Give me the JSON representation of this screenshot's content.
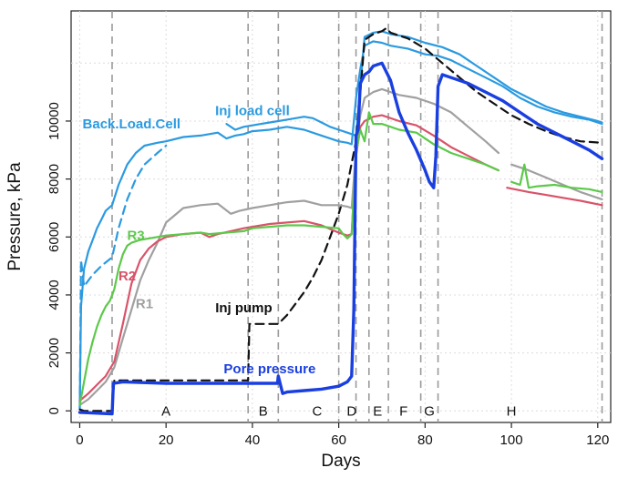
{
  "chart_data": {
    "type": "line",
    "xlabel": "Days",
    "ylabel": "Pressure, kPa",
    "xlim": [
      -2,
      123
    ],
    "ylim": [
      -400,
      13800
    ],
    "xticks": [
      0,
      20,
      40,
      60,
      80,
      100,
      120
    ],
    "yticks": [
      0,
      2000,
      4000,
      6000,
      8000,
      10000
    ],
    "grid": true,
    "phase_boundaries": [
      7.5,
      39,
      46,
      60,
      64,
      67,
      71.5,
      79,
      83,
      121
    ],
    "phases": [
      {
        "label": "A",
        "x": 20
      },
      {
        "label": "B",
        "x": 42.5
      },
      {
        "label": "C",
        "x": 55
      },
      {
        "label": "D",
        "x": 63
      },
      {
        "label": "E",
        "x": 69
      },
      {
        "label": "F",
        "x": 75
      },
      {
        "label": "G",
        "x": 81
      },
      {
        "label": "H",
        "x": 100
      }
    ],
    "annotations": [
      {
        "text": "Back.Load.Cell",
        "x": 12,
        "y": 9750,
        "color": "#2b9ae0"
      },
      {
        "text": "Inj load cell",
        "x": 40,
        "y": 10200,
        "color": "#2b9ae0"
      },
      {
        "text": "R3",
        "x": 13,
        "y": 5900,
        "color": "#5cc94a"
      },
      {
        "text": "R2",
        "x": 11,
        "y": 4500,
        "color": "#d9536a"
      },
      {
        "text": "R1",
        "x": 15,
        "y": 3550,
        "color": "#a0a0a0"
      },
      {
        "text": "Inj pump",
        "x": 38,
        "y": 3400,
        "color": "#111111"
      },
      {
        "text": "Pore pressure",
        "x": 44,
        "y": 1300,
        "color": "#1a3fe0"
      }
    ],
    "series": [
      {
        "color": "#2b9ae0",
        "dash": "solid",
        "width": 2.2,
        "x": [
          0,
          0.3,
          1,
          2,
          3,
          4,
          5,
          6,
          7.5,
          9,
          11,
          13,
          15,
          18,
          20,
          24,
          28,
          32,
          34,
          36,
          38,
          40,
          44,
          48,
          52,
          56,
          60,
          62,
          63,
          64,
          65,
          66,
          68,
          70,
          72,
          74,
          76,
          78,
          80,
          83,
          86,
          90,
          94,
          98,
          102,
          106,
          110,
          114,
          118,
          121
        ],
        "y": [
          100,
          3600,
          4900,
          5500,
          5900,
          6300,
          6600,
          6900,
          7100,
          7800,
          8500,
          8900,
          9150,
          9250,
          9300,
          9450,
          9500,
          9600,
          9400,
          9500,
          9550,
          9650,
          9700,
          9800,
          9700,
          9500,
          9300,
          9250,
          9200,
          10800,
          11800,
          12600,
          12750,
          12700,
          12600,
          12550,
          12500,
          12400,
          12300,
          12250,
          12100,
          11800,
          11500,
          11200,
          10800,
          10500,
          10300,
          10150,
          10050,
          9900
        ]
      },
      {
        "color": "#2b9ae0",
        "dash": "dashed",
        "width": 2.2,
        "x": [
          0,
          0.3,
          1,
          3,
          5,
          7.5,
          9,
          11,
          13,
          15,
          18,
          20
        ],
        "y": [
          100,
          5200,
          4300,
          4700,
          5000,
          5300,
          6300,
          7300,
          8000,
          8500,
          8900,
          9150
        ]
      },
      {
        "color": "#2b9ae0",
        "dash": "solid",
        "width": 2.2,
        "x": [
          34,
          36,
          38,
          40,
          42,
          44,
          46,
          48,
          50,
          52,
          54,
          56,
          58,
          60,
          62,
          63,
          64,
          65,
          66,
          68,
          70,
          72,
          76,
          80,
          84,
          88,
          92,
          96,
          100,
          104,
          108,
          112,
          116,
          120,
          121
        ],
        "y": [
          9900,
          9700,
          9800,
          9850,
          9900,
          9950,
          10000,
          10050,
          10100,
          10150,
          10100,
          9950,
          9800,
          9700,
          9600,
          9550,
          9500,
          11200,
          12900,
          13050,
          13100,
          13000,
          12900,
          12700,
          12550,
          12300,
          11900,
          11500,
          11100,
          10800,
          10500,
          10300,
          10150,
          10000,
          9950
        ]
      },
      {
        "color": "#111111",
        "dash": "dashed",
        "width": 2.2,
        "x": [
          0,
          1,
          7.5,
          8,
          39,
          39.3,
          46,
          48,
          50,
          52,
          54,
          56,
          58,
          60,
          62,
          64,
          65,
          66,
          68,
          70,
          71,
          72,
          76,
          80,
          84,
          88,
          92,
          96,
          100,
          104,
          108,
          112,
          116,
          121
        ],
        "y": [
          50,
          0,
          0,
          1050,
          1050,
          3000,
          3000,
          3300,
          3700,
          4100,
          4600,
          5200,
          6000,
          6800,
          7800,
          9300,
          11000,
          12800,
          13000,
          13100,
          13200,
          13050,
          12850,
          12500,
          12000,
          11500,
          11000,
          10600,
          10200,
          9900,
          9650,
          9450,
          9300,
          9250
        ]
      },
      {
        "color": "#a0a0a0",
        "dash": "solid",
        "width": 2.2,
        "x": [
          0,
          2,
          4,
          6,
          8,
          10,
          12,
          14,
          16,
          18,
          20,
          24,
          28,
          32,
          35,
          37,
          40,
          44,
          48,
          52,
          56,
          60,
          62,
          63,
          64,
          65,
          66,
          68,
          70,
          74,
          78,
          82,
          86,
          90,
          94,
          97
        ],
        "y": [
          200,
          400,
          700,
          1000,
          1500,
          2500,
          3500,
          4500,
          5200,
          5800,
          6500,
          7000,
          7100,
          7150,
          6800,
          6900,
          7000,
          7100,
          7200,
          7250,
          7100,
          7100,
          7050,
          7000,
          9000,
          10200,
          10800,
          11000,
          11100,
          10900,
          10800,
          10600,
          10300,
          9800,
          9300,
          8900
        ]
      },
      {
        "color": "#a0a0a0",
        "dash": "solid",
        "width": 2.2,
        "x": [
          100,
          104,
          108,
          112,
          116,
          121
        ],
        "y": [
          8500,
          8300,
          8050,
          7800,
          7550,
          7300
        ]
      },
      {
        "color": "#d9536a",
        "dash": "solid",
        "width": 2.2,
        "x": [
          0,
          2,
          4,
          6,
          8,
          10,
          12,
          14,
          16,
          18,
          20,
          24,
          28,
          30,
          32,
          35,
          38,
          40,
          44,
          48,
          52,
          56,
          60,
          62,
          63,
          64,
          65,
          66,
          68,
          70,
          74,
          78,
          82,
          86,
          90,
          94,
          97
        ],
        "y": [
          350,
          600,
          900,
          1200,
          1700,
          3000,
          4400,
          5200,
          5600,
          5850,
          6000,
          6100,
          6150,
          6000,
          6100,
          6200,
          6300,
          6350,
          6450,
          6500,
          6550,
          6400,
          6150,
          6050,
          6100,
          8800,
          9800,
          10000,
          10150,
          10200,
          10000,
          9850,
          9500,
          9100,
          8800,
          8500,
          8300
        ]
      },
      {
        "color": "#d9536a",
        "dash": "solid",
        "width": 2.2,
        "x": [
          99,
          104,
          108,
          112,
          116,
          121
        ],
        "y": [
          7700,
          7550,
          7450,
          7350,
          7250,
          7100
        ]
      },
      {
        "color": "#5cc94a",
        "dash": "solid",
        "width": 2.2,
        "x": [
          0,
          1,
          2,
          3,
          4,
          5,
          6,
          7,
          8,
          9,
          10,
          11,
          12,
          14,
          16,
          18,
          20,
          24,
          28,
          30,
          34,
          38,
          40,
          44,
          48,
          52,
          56,
          60,
          61,
          62,
          63,
          64,
          65,
          66,
          67,
          68,
          70,
          74,
          78,
          82,
          86,
          90,
          94,
          97
        ],
        "y": [
          200,
          1000,
          1800,
          2400,
          2900,
          3300,
          3600,
          3800,
          4200,
          4900,
          5400,
          5700,
          5800,
          5900,
          5950,
          6000,
          6050,
          6100,
          6150,
          6100,
          6150,
          6200,
          6300,
          6350,
          6400,
          6400,
          6350,
          6300,
          6100,
          5950,
          6100,
          8900,
          9700,
          9300,
          10300,
          9900,
          9900,
          9700,
          9600,
          9200,
          8900,
          8700,
          8500,
          8300
        ]
      },
      {
        "color": "#5cc94a",
        "dash": "solid",
        "width": 2.2,
        "x": [
          100,
          102,
          103,
          104,
          106,
          110,
          114,
          118,
          121
        ],
        "y": [
          7900,
          7800,
          8500,
          7700,
          7750,
          7800,
          7700,
          7650,
          7550
        ]
      },
      {
        "color": "#1a3fe0",
        "dash": "solid",
        "width": 3.4,
        "x": [
          0,
          7.5,
          7.8,
          10,
          20,
          30,
          40,
          45.8,
          46,
          47,
          48,
          52,
          56,
          60,
          62,
          63,
          63.5,
          64,
          64.5,
          65,
          66,
          67,
          68,
          70,
          72,
          74,
          76,
          78,
          80,
          81,
          82,
          82.5,
          83,
          84,
          86,
          90,
          94,
          98,
          102,
          106,
          110,
          114,
          118,
          121
        ],
        "y": [
          -50,
          -100,
          950,
          1000,
          950,
          950,
          950,
          950,
          1200,
          600,
          650,
          700,
          750,
          850,
          1000,
          1200,
          3500,
          9500,
          9700,
          11300,
          11600,
          11700,
          11900,
          12000,
          11400,
          10300,
          9600,
          9000,
          8300,
          7900,
          7700,
          8800,
          11200,
          11600,
          11500,
          11300,
          11000,
          10700,
          10300,
          9900,
          9600,
          9300,
          9000,
          8700
        ]
      }
    ]
  }
}
